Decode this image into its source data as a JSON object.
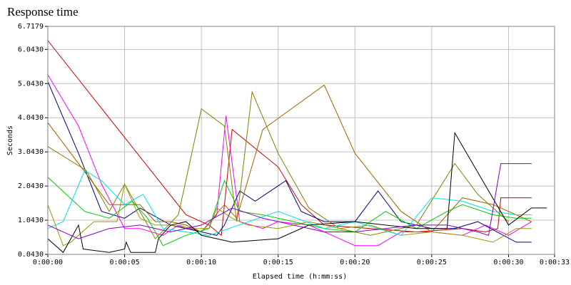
{
  "chart_data": {
    "type": "line",
    "title": "Response time",
    "xlabel": "Elapsed time (h:mm:ss)",
    "ylabel": "Seconds",
    "xlim": [
      0,
      33
    ],
    "ylim": [
      0.043,
      6.7179
    ],
    "grid": true,
    "xticks": [
      {
        "value": 0,
        "label": "0:00:00"
      },
      {
        "value": 5,
        "label": "0:00:05"
      },
      {
        "value": 10,
        "label": "0:00:10"
      },
      {
        "value": 15,
        "label": "0:00:15"
      },
      {
        "value": 20,
        "label": "0:00:20"
      },
      {
        "value": 25,
        "label": "0:00:25"
      },
      {
        "value": 30,
        "label": "0:00:30"
      },
      {
        "value": 33,
        "label": "0:00:33"
      }
    ],
    "yticks": [
      {
        "value": 0.043,
        "label": "0.0430"
      },
      {
        "value": 1.043,
        "label": "1.0430"
      },
      {
        "value": 2.043,
        "label": "2.0430"
      },
      {
        "value": 3.043,
        "label": "3.0430"
      },
      {
        "value": 4.043,
        "label": "4.0430"
      },
      {
        "value": 5.043,
        "label": "5.0430"
      },
      {
        "value": 6.043,
        "label": "6.0430"
      },
      6.7179
    ],
    "series": [
      {
        "color": "#cc0000",
        "x": [
          0,
          9,
          10.5,
          11.3,
          12,
          15,
          16.5,
          18,
          21,
          24,
          27,
          28.5,
          29.3,
          29.5,
          31.5
        ],
        "values": [
          6.3,
          1.2,
          0.9,
          0.6,
          3.7,
          2.6,
          1.5,
          0.9,
          0.8,
          0.7,
          0.8,
          0.7,
          0.8,
          1.7,
          1.7
        ]
      },
      {
        "color": "#ff00ff",
        "x": [
          0,
          2,
          3.5,
          5,
          6,
          7.5,
          8.5,
          10,
          11,
          11.6,
          12.5,
          14,
          15,
          17,
          19,
          20,
          21.5,
          23,
          25,
          27,
          28.5,
          30,
          31.5
        ],
        "values": [
          5.3,
          3.8,
          2.1,
          0.8,
          0.8,
          0.6,
          0.9,
          0.7,
          1.2,
          4.1,
          1.0,
          0.8,
          1.0,
          0.9,
          0.5,
          0.3,
          0.3,
          0.7,
          0.7,
          0.6,
          0.9,
          0.6,
          1.0
        ]
      },
      {
        "color": "#000080",
        "x": [
          0,
          2,
          3.5,
          5,
          6,
          8,
          10,
          11,
          11.5,
          12.5,
          13.5,
          15.5,
          16.5,
          18,
          20,
          21.5,
          23,
          25,
          26.5,
          28,
          30.5,
          31.5
        ],
        "values": [
          5.1,
          3.0,
          1.3,
          1.1,
          1.4,
          0.9,
          0.7,
          0.6,
          0.9,
          1.9,
          1.6,
          2.2,
          1.3,
          1.0,
          1.0,
          1.9,
          1.0,
          0.8,
          0.8,
          1.0,
          0.4,
          0.4
        ]
      },
      {
        "color": "#808000",
        "x": [
          0,
          2.5,
          4,
          5,
          7,
          8.5,
          10,
          11.5,
          12.3,
          13.3,
          15,
          17,
          19,
          21,
          24,
          26.5,
          28,
          30
        ],
        "values": [
          3.2,
          2.5,
          1.3,
          2.1,
          0.5,
          1.2,
          4.3,
          3.8,
          1.0,
          4.8,
          3.0,
          1.4,
          0.8,
          0.6,
          0.9,
          2.7,
          1.8,
          1.0
        ]
      },
      {
        "color": "#a06000",
        "x": [
          0,
          4,
          6,
          7,
          8,
          9,
          10,
          11.5,
          12.3,
          14,
          18,
          20,
          23,
          25,
          27,
          29,
          31.5
        ],
        "values": [
          3.9,
          1.5,
          1.5,
          1.0,
          1.0,
          0.9,
          0.7,
          1.5,
          1.1,
          3.7,
          5.0,
          3.0,
          1.3,
          0.7,
          1.7,
          1.5,
          1.0
        ]
      },
      {
        "color": "#999900",
        "x": [
          0,
          1,
          1.5,
          3,
          4.5,
          5,
          6,
          7,
          8,
          9.5,
          10.5,
          11,
          12,
          13,
          15,
          17,
          19,
          21,
          23,
          25,
          27,
          29,
          30.5,
          31.5
        ],
        "values": [
          1.5,
          0.3,
          0.4,
          1.0,
          1.0,
          2.1,
          1.1,
          0.9,
          0.9,
          0.8,
          0.8,
          1.4,
          1.1,
          0.9,
          0.8,
          1.0,
          0.8,
          0.9,
          0.6,
          0.7,
          0.6,
          0.4,
          0.8,
          0.8
        ]
      },
      {
        "color": "#00cc00",
        "x": [
          0,
          2.4,
          4,
          5.5,
          6.5,
          7.5,
          9,
          10.5,
          11.5,
          12.5,
          14,
          16,
          18,
          20,
          22,
          24,
          26,
          27,
          29,
          30.5,
          31.5
        ],
        "values": [
          2.3,
          1.3,
          1.1,
          1.6,
          1.1,
          0.3,
          0.6,
          0.8,
          2.2,
          1.3,
          1.2,
          1.0,
          0.8,
          0.7,
          1.3,
          0.8,
          1.3,
          1.5,
          1.2,
          1.1,
          1.1
        ]
      },
      {
        "color": "#00e0e0",
        "x": [
          0,
          1,
          2.4,
          3.5,
          5,
          6.2,
          7.5,
          10.5,
          15,
          18,
          20,
          23,
          25,
          27,
          29,
          30.5,
          31.5
        ],
        "values": [
          0.8,
          1.0,
          2.5,
          2.2,
          1.5,
          1.8,
          0.8,
          0.6,
          1.3,
          0.8,
          1.0,
          0.6,
          1.7,
          1.6,
          1.3,
          1.2,
          1.2
        ]
      },
      {
        "color": "#000000",
        "x": [
          0,
          1,
          2,
          2.3,
          4,
          5,
          5.1,
          5.4,
          7,
          7.2,
          8,
          9,
          10,
          12,
          15,
          17,
          20,
          24,
          26,
          26.5,
          30,
          31.5,
          32.5
        ],
        "values": [
          0.5,
          0.1,
          0.9,
          0.2,
          0.1,
          0.2,
          0.4,
          0.1,
          0.1,
          0.5,
          0.9,
          1.0,
          0.6,
          0.4,
          0.5,
          0.9,
          1.0,
          0.8,
          0.8,
          3.6,
          0.9,
          1.4,
          1.4
        ]
      },
      {
        "color": "#8000c0",
        "x": [
          0,
          2,
          4,
          6,
          8,
          10,
          12,
          14,
          16,
          18,
          20,
          22,
          24,
          26,
          28,
          28.7,
          29.5,
          31.5
        ],
        "values": [
          0.9,
          0.5,
          0.8,
          0.9,
          0.7,
          0.9,
          1.4,
          1.1,
          0.9,
          0.7,
          0.7,
          0.8,
          0.9,
          0.9,
          0.7,
          0.6,
          2.7,
          2.7
        ]
      }
    ]
  }
}
